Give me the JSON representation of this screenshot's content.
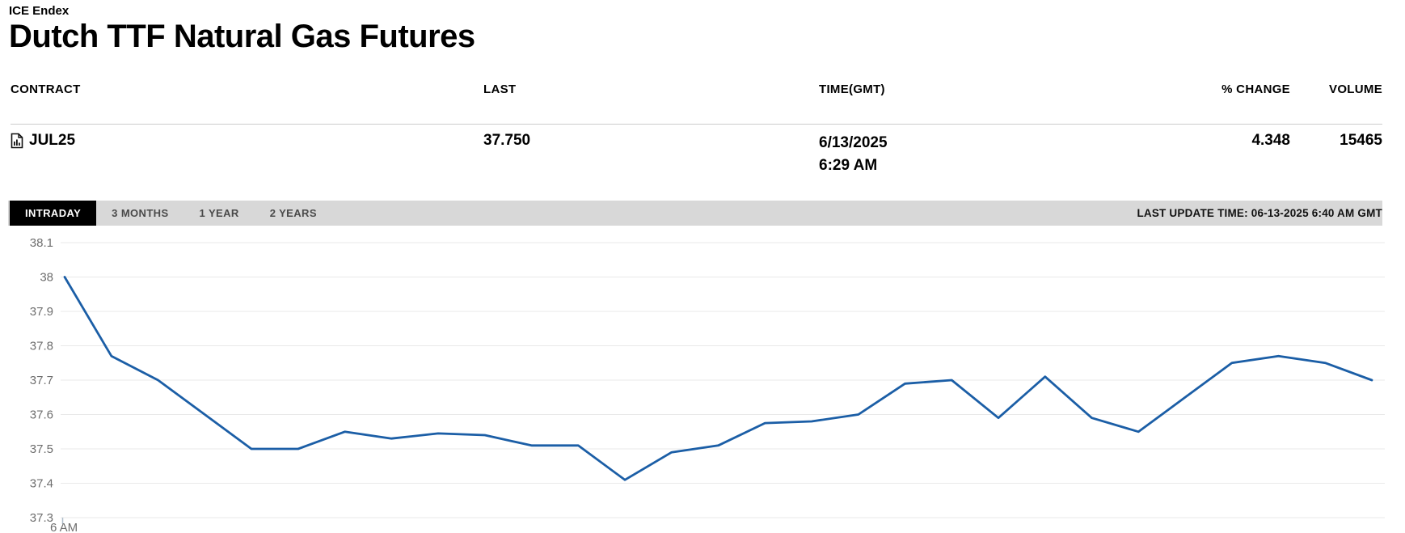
{
  "header": {
    "exchange": "ICE Endex",
    "title": "Dutch TTF Natural Gas Futures"
  },
  "quote_table": {
    "columns": {
      "contract": "CONTRACT",
      "last": "LAST",
      "time": "TIME(GMT)",
      "pct_change": "% CHANGE",
      "volume": "VOLUME"
    },
    "row": {
      "contract": "JUL25",
      "last": "37.750",
      "date": "6/13/2025",
      "time": "6:29 AM",
      "pct_change": "4.348",
      "volume": "15465"
    }
  },
  "tabs": [
    {
      "label": "INTRADAY",
      "active": true
    },
    {
      "label": "3 MONTHS",
      "active": false
    },
    {
      "label": "1 YEAR",
      "active": false
    },
    {
      "label": "2 YEARS",
      "active": false
    }
  ],
  "last_update": "LAST UPDATE TIME: 06-13-2025 6:40 AM GMT",
  "colors": {
    "line": "#1b5ea6",
    "tab_bar_bg": "#d8d8d8",
    "active_tab_bg": "#000000",
    "gridline": "#e9e9e9",
    "axis_label": "#6e6e6e",
    "axis_tick": "#aebdc9"
  },
  "chart_data": {
    "type": "line",
    "series_name": "JUL25 intraday price",
    "x_tick_labels": [
      "6 AM"
    ],
    "y_ticks": [
      "38.1",
      "38",
      "37.9",
      "37.8",
      "37.7",
      "37.6",
      "37.5",
      "37.4",
      "37.3"
    ],
    "ylim": [
      37.3,
      38.1
    ],
    "grid": true,
    "legend": false,
    "values": [
      38.0,
      37.77,
      37.7,
      37.6,
      37.5,
      37.5,
      37.55,
      37.53,
      37.545,
      37.54,
      37.51,
      37.51,
      37.41,
      37.49,
      37.51,
      37.575,
      37.58,
      37.6,
      37.69,
      37.7,
      37.59,
      37.71,
      37.59,
      37.55,
      37.65,
      37.75,
      37.77,
      37.75,
      37.7
    ]
  }
}
